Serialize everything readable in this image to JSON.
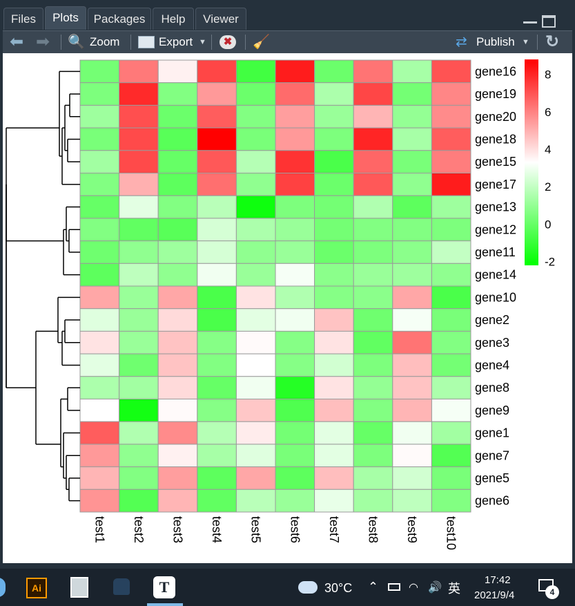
{
  "tabs": [
    {
      "label": "Files",
      "active": false
    },
    {
      "label": "Plots",
      "active": true
    },
    {
      "label": "Packages",
      "active": false
    },
    {
      "label": "Help",
      "active": false
    },
    {
      "label": "Viewer",
      "active": false
    }
  ],
  "toolbar": {
    "zoom": "Zoom",
    "export": "Export",
    "publish": "Publish"
  },
  "chart_data": {
    "type": "heatmap",
    "rows": [
      "gene16",
      "gene19",
      "gene20",
      "gene18",
      "gene15",
      "gene17",
      "gene13",
      "gene12",
      "gene11",
      "gene14",
      "gene10",
      "gene2",
      "gene3",
      "gene4",
      "gene8",
      "gene9",
      "gene1",
      "gene7",
      "gene5",
      "gene6"
    ],
    "columns": [
      "test1",
      "test2",
      "test3",
      "test4",
      "test5",
      "test6",
      "test7",
      "test8",
      "test9",
      "test10"
    ],
    "values": [
      [
        0.3,
        6.2,
        3.6,
        7.3,
        -0.8,
        8.2,
        0.1,
        6.3,
        1.4,
        7.0
      ],
      [
        0.5,
        7.9,
        0.6,
        5.5,
        0.1,
        6.5,
        1.5,
        7.3,
        0.3,
        5.9
      ],
      [
        1.2,
        7.1,
        0.1,
        6.8,
        0.6,
        5.4,
        1.1,
        4.9,
        1.0,
        5.8
      ],
      [
        0.4,
        7.2,
        -0.3,
        8.8,
        0.4,
        5.5,
        0.5,
        8.0,
        1.4,
        6.8
      ],
      [
        1.3,
        7.2,
        0.0,
        6.9,
        1.7,
        7.7,
        -0.6,
        6.6,
        0.4,
        6.1
      ],
      [
        0.6,
        5.0,
        -0.2,
        6.4,
        0.9,
        7.4,
        0.1,
        6.9,
        0.9,
        8.2
      ],
      [
        0.0,
        2.7,
        0.6,
        1.8,
        -1.9,
        0.5,
        0.3,
        1.6,
        -0.2,
        1.2
      ],
      [
        0.6,
        -0.1,
        -0.3,
        2.4,
        1.5,
        1.1,
        0.3,
        0.6,
        0.6,
        0.5
      ],
      [
        0.2,
        0.9,
        1.2,
        2.4,
        0.9,
        1.1,
        0.1,
        0.5,
        0.8,
        2.0
      ],
      [
        -0.2,
        1.9,
        0.9,
        3.0,
        1.1,
        3.1,
        0.8,
        1.1,
        1.2,
        0.9
      ],
      [
        5.2,
        1.1,
        5.2,
        -0.6,
        3.9,
        1.6,
        0.7,
        0.8,
        5.2,
        -0.6
      ],
      [
        2.6,
        1.1,
        4.1,
        -0.6,
        2.7,
        3.0,
        4.6,
        0.2,
        3.1,
        0.4
      ],
      [
        3.9,
        1.1,
        4.6,
        0.7,
        3.4,
        0.7,
        3.9,
        -0.1,
        6.3,
        0.6
      ],
      [
        2.7,
        0.2,
        4.6,
        0.6,
        3.3,
        0.7,
        2.3,
        0.5,
        4.7,
        0.3
      ],
      [
        1.5,
        1.3,
        4.1,
        0.0,
        3.0,
        -1.4,
        3.9,
        1.0,
        4.6,
        1.5
      ],
      [
        3.3,
        -1.8,
        3.4,
        0.7,
        4.5,
        -0.5,
        4.7,
        0.6,
        4.9,
        3.1
      ],
      [
        6.8,
        1.6,
        5.8,
        1.7,
        3.7,
        0.3,
        2.7,
        0.0,
        3.0,
        1.3
      ],
      [
        5.5,
        0.9,
        3.6,
        1.4,
        2.6,
        0.4,
        2.7,
        0.5,
        3.4,
        -0.4
      ],
      [
        4.9,
        0.6,
        5.4,
        -0.2,
        5.2,
        -0.2,
        4.7,
        1.4,
        2.3,
        0.4
      ],
      [
        5.6,
        -0.4,
        4.9,
        -0.1,
        1.8,
        1.1,
        2.8,
        1.3,
        1.9,
        0.6
      ]
    ],
    "legend": {
      "ticks": [
        "8",
        "6",
        "4",
        "2",
        "0",
        "-2"
      ],
      "tick_values": [
        8,
        6,
        4,
        2,
        0,
        -2
      ],
      "min": -2.2,
      "max": 8.8,
      "colors": [
        "#00ff00",
        "#ffffff",
        "#ff0000"
      ]
    }
  },
  "taskbar": {
    "temperature": "30°C",
    "ime": "英",
    "time": "17:42",
    "date": "2021/9/4",
    "notifications": "4"
  }
}
